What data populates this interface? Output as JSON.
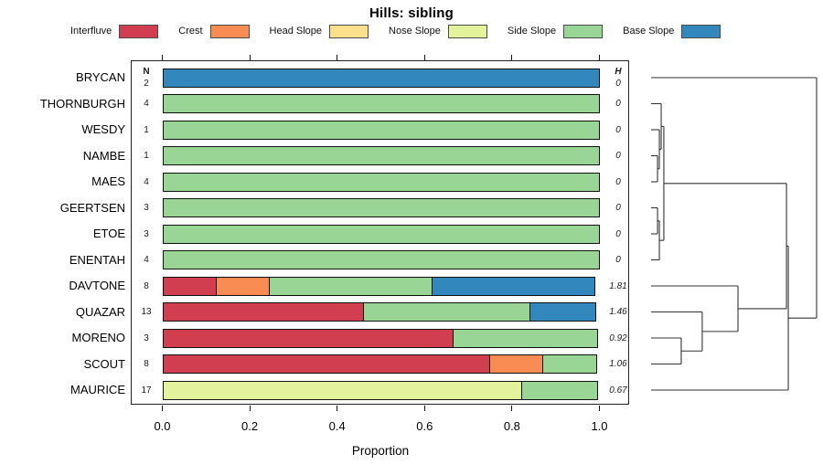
{
  "title": "Hills: sibling",
  "axis": {
    "label": "Proportion",
    "ticks": [
      "0.0",
      "0.2",
      "0.4",
      "0.6",
      "0.8",
      "1.0"
    ],
    "xlim": [
      0,
      1
    ]
  },
  "columns": {
    "n_header": "N",
    "h_header": "H"
  },
  "legend": {
    "items": [
      {
        "label": "Interfluve",
        "color": "#D13E4F"
      },
      {
        "label": "Crest",
        "color": "#F88C52"
      },
      {
        "label": "Head Slope",
        "color": "#FCE08C"
      },
      {
        "label": "Nose Slope",
        "color": "#E3F39B"
      },
      {
        "label": "Side Slope",
        "color": "#99D594"
      },
      {
        "label": "Base Slope",
        "color": "#3287BC"
      }
    ]
  },
  "chart_data": {
    "type": "bar",
    "orientation": "horizontal",
    "stacked": true,
    "title": "Hills: sibling",
    "xlabel": "Proportion",
    "xlim": [
      0,
      1
    ],
    "grid": false,
    "legend_position": "top",
    "categories": [
      "Interfluve",
      "Crest",
      "Head Slope",
      "Nose Slope",
      "Side Slope",
      "Base Slope"
    ],
    "colors": {
      "Interfluve": "#D13E4F",
      "Crest": "#F88C52",
      "Head Slope": "#FCE08C",
      "Nose Slope": "#E3F39B",
      "Side Slope": "#99D594",
      "Base Slope": "#3287BC"
    },
    "rows": [
      {
        "name": "BRYCAN",
        "n": "2",
        "h": "0",
        "segments": [
          [
            "Base Slope",
            1.0
          ]
        ]
      },
      {
        "name": "THORNBURGH",
        "n": "4",
        "h": "0",
        "segments": [
          [
            "Side Slope",
            1.0
          ]
        ]
      },
      {
        "name": "WESDY",
        "n": "1",
        "h": "0",
        "segments": [
          [
            "Side Slope",
            1.0
          ]
        ]
      },
      {
        "name": "NAMBE",
        "n": "1",
        "h": "0",
        "segments": [
          [
            "Side Slope",
            1.0
          ]
        ]
      },
      {
        "name": "MAES",
        "n": "4",
        "h": "0",
        "segments": [
          [
            "Side Slope",
            1.0
          ]
        ]
      },
      {
        "name": "GEERTSEN",
        "n": "3",
        "h": "0",
        "segments": [
          [
            "Side Slope",
            1.0
          ]
        ]
      },
      {
        "name": "ETOE",
        "n": "3",
        "h": "0",
        "segments": [
          [
            "Side Slope",
            1.0
          ]
        ]
      },
      {
        "name": "ENENTAH",
        "n": "4",
        "h": "0",
        "segments": [
          [
            "Side Slope",
            1.0
          ]
        ]
      },
      {
        "name": "DAVTONE",
        "n": "8",
        "h": "1.81",
        "segments": [
          [
            "Interfluve",
            0.125
          ],
          [
            "Crest",
            0.125
          ],
          [
            "Side Slope",
            0.375
          ],
          [
            "Base Slope",
            0.375
          ]
        ]
      },
      {
        "name": "QUAZAR",
        "n": "13",
        "h": "1.46",
        "segments": [
          [
            "Interfluve",
            0.4615
          ],
          [
            "Side Slope",
            0.3846
          ],
          [
            "Base Slope",
            0.1539
          ]
        ]
      },
      {
        "name": "MORENO",
        "n": "3",
        "h": "0.92",
        "segments": [
          [
            "Interfluve",
            0.6667
          ],
          [
            "Side Slope",
            0.3333
          ]
        ]
      },
      {
        "name": "SCOUT",
        "n": "8",
        "h": "1.06",
        "segments": [
          [
            "Interfluve",
            0.75
          ],
          [
            "Crest",
            0.125
          ],
          [
            "Side Slope",
            0.125
          ]
        ]
      },
      {
        "name": "MAURICE",
        "n": "17",
        "h": "0.67",
        "segments": [
          [
            "Nose Slope",
            0.8235
          ],
          [
            "Side Slope",
            0.1765
          ]
        ]
      }
    ],
    "dendrogram": {
      "leaf_order": [
        "BRYCAN",
        "THORNBURGH",
        "WESDY",
        "NAMBE",
        "MAES",
        "GEERTSEN",
        "ETOE",
        "ENENTAH",
        "DAVTONE",
        "QUAZAR",
        "MORENO",
        "SCOUT",
        "MAURICE"
      ],
      "merges": [
        {
          "a": "L3",
          "b": "L4",
          "h": 0.039
        },
        {
          "a": "L2",
          "b": "M0",
          "h": 0.05
        },
        {
          "a": "L1",
          "b": "M1",
          "h": 0.061
        },
        {
          "a": "L5",
          "b": "L6",
          "h": 0.039
        },
        {
          "a": "M3",
          "b": "L7",
          "h": 0.05
        },
        {
          "a": "M2",
          "b": "M4",
          "h": 0.077
        },
        {
          "a": "L10",
          "b": "L11",
          "h": 0.182
        },
        {
          "a": "L9",
          "b": "M6",
          "h": 0.309
        },
        {
          "a": "L8",
          "b": "M7",
          "h": 0.525
        },
        {
          "a": "M5",
          "b": "M8",
          "h": 0.818
        },
        {
          "a": "M9",
          "b": "L12",
          "h": 0.829
        },
        {
          "a": "L0",
          "b": "M10",
          "h": 1.0
        }
      ]
    }
  }
}
